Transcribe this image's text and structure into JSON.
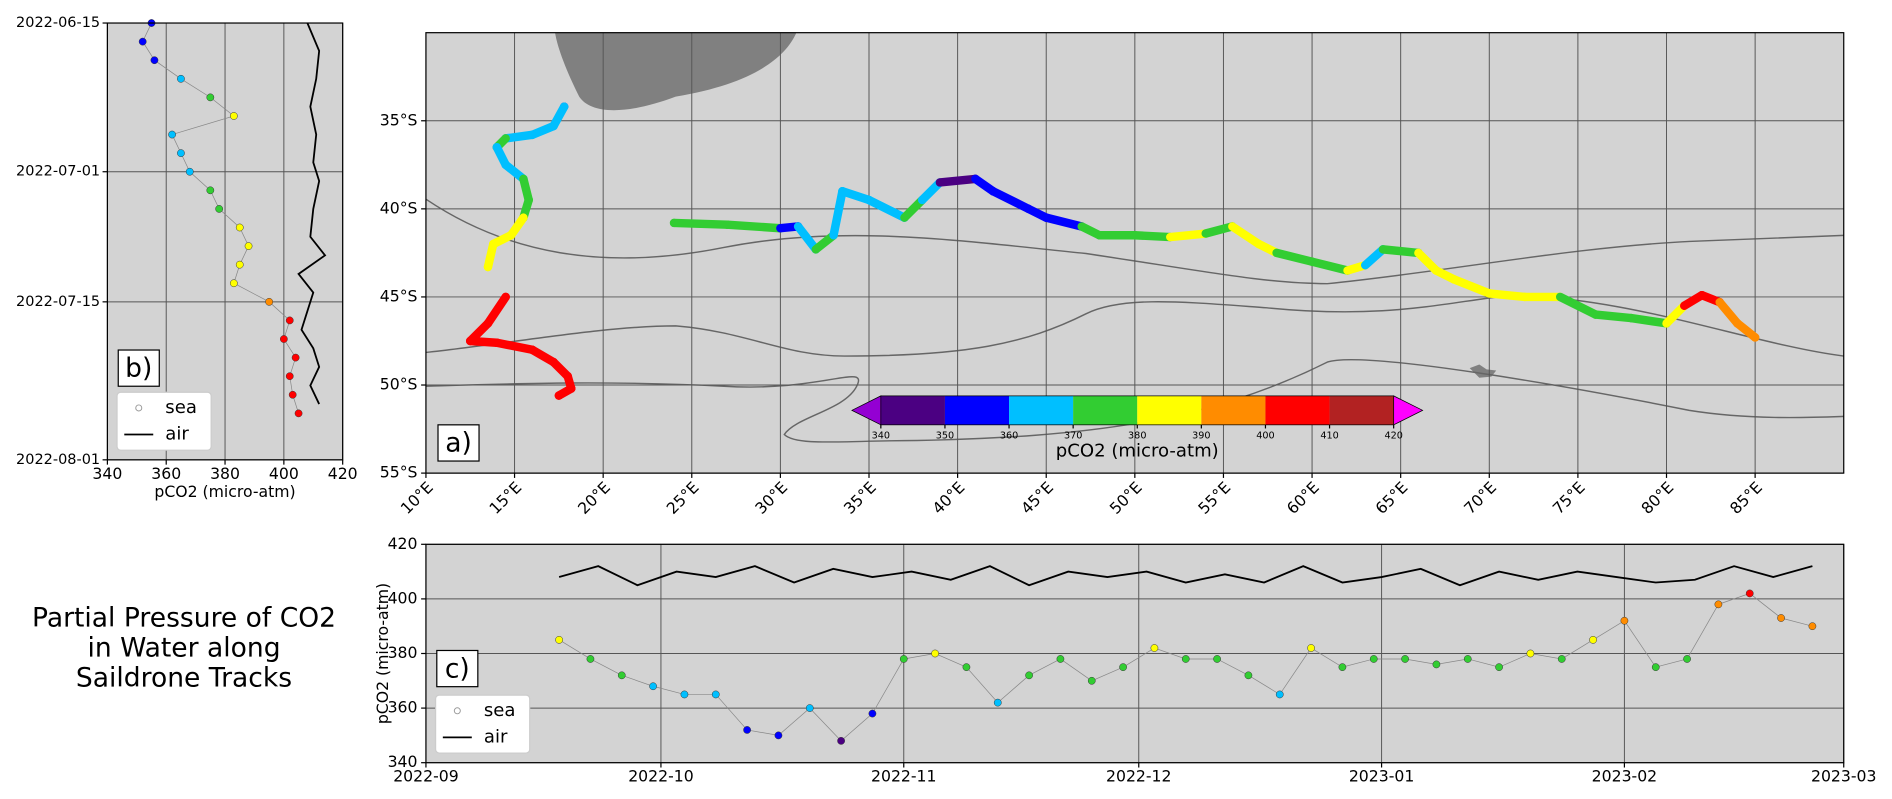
{
  "caption": "Partial Pressure of CO2 in Water along Saildrone Tracks",
  "chart_data": [
    {
      "type": "map",
      "label": "a)",
      "grid": true,
      "xlim": [
        10,
        90
      ],
      "ylim": [
        -55,
        -30
      ],
      "xticks": [
        {
          "value": 10,
          "label": "10°E"
        },
        {
          "value": 15,
          "label": "15°E"
        },
        {
          "value": 20,
          "label": "20°E"
        },
        {
          "value": 25,
          "label": "25°E"
        },
        {
          "value": 30,
          "label": "30°E"
        },
        {
          "value": 35,
          "label": "35°E"
        },
        {
          "value": 40,
          "label": "40°E"
        },
        {
          "value": 45,
          "label": "45°E"
        },
        {
          "value": 50,
          "label": "50°E"
        },
        {
          "value": 55,
          "label": "55°E"
        },
        {
          "value": 60,
          "label": "60°E"
        },
        {
          "value": 65,
          "label": "65°E"
        },
        {
          "value": 70,
          "label": "70°E"
        },
        {
          "value": 75,
          "label": "75°E"
        },
        {
          "value": 80,
          "label": "80°E"
        },
        {
          "value": 85,
          "label": "85°E"
        }
      ],
      "yticks": [
        {
          "value": -55,
          "label": "55°S"
        },
        {
          "value": -50,
          "label": "50°S"
        },
        {
          "value": -45,
          "label": "45°S"
        },
        {
          "value": -40,
          "label": "40°S"
        },
        {
          "value": -35,
          "label": "35°S"
        }
      ],
      "colorbar": {
        "label": "pCO2 (micro-atm)",
        "bounds": [
          340,
          350,
          360,
          370,
          380,
          390,
          400,
          410,
          420
        ],
        "colors": [
          "#4b0082",
          "#0000ff",
          "#00bfff",
          "#32cd32",
          "#ffff00",
          "#ff8c00",
          "#ff0000",
          "#b22222"
        ],
        "under": "#9400d3",
        "over": "#ff00ff"
      },
      "tracks": [
        {
          "lon": [
            17.8,
            17.2,
            16,
            14.5,
            14,
            14.5,
            15.5,
            15.8,
            15.5,
            14.8,
            13.8,
            13.5
          ],
          "lat": [
            -34.2,
            -35.3,
            -35.8,
            -36,
            -36.5,
            -37.5,
            -38.3,
            -39.5,
            -40.5,
            -41.5,
            -42,
            -43.3
          ],
          "pco2": [
            350,
            360,
            365,
            365,
            370,
            360,
            360,
            370,
            375,
            385,
            385,
            385
          ]
        },
        {
          "lon": [
            14.5,
            13.5,
            12.5,
            14,
            16,
            17.2,
            18,
            18.2,
            17.5
          ],
          "lat": [
            -45,
            -46.5,
            -47.5,
            -47.6,
            -48,
            -48.7,
            -49.5,
            -50.2,
            -50.6
          ],
          "pco2": [
            405,
            405,
            405,
            405,
            405,
            405,
            405,
            405,
            405
          ]
        },
        {
          "lon": [
            24,
            27,
            30,
            31,
            32,
            33,
            33.5,
            35,
            37,
            38,
            39,
            41,
            42,
            44,
            45,
            47,
            48,
            50,
            52,
            54,
            55.5,
            57,
            58,
            60,
            62,
            63,
            64,
            66,
            67,
            68,
            70,
            72,
            74,
            76,
            78,
            80,
            81,
            82,
            83,
            84,
            85
          ],
          "lat": [
            -40.8,
            -40.9,
            -41.1,
            -41,
            -42.3,
            -41.5,
            -39,
            -39.5,
            -40.5,
            -39.5,
            -38.5,
            -38.3,
            -39,
            -40,
            -40.5,
            -41,
            -41.5,
            -41.5,
            -41.6,
            -41.4,
            -41,
            -42,
            -42.5,
            -43,
            -43.5,
            -43.2,
            -42.3,
            -42.5,
            -43.5,
            -44,
            -44.8,
            -45,
            -45,
            -46,
            -46.2,
            -46.5,
            -45.5,
            -44.9,
            -45.3,
            -46.5,
            -47.3
          ],
          "pco2": [
            375,
            372,
            370,
            355,
            365,
            372,
            365,
            365,
            365,
            370,
            360,
            345,
            350,
            355,
            350,
            355,
            375,
            372,
            372,
            382,
            375,
            380,
            385,
            375,
            375,
            385,
            360,
            378,
            380,
            385,
            385,
            388,
            385,
            375,
            375,
            375,
            385,
            405,
            405,
            395,
            390
          ]
        }
      ]
    },
    {
      "type": "scatter",
      "label": "b)",
      "xlabel": "pCO2 (micro-atm)",
      "grid": true,
      "legend": "lower left",
      "xlim": [
        340,
        420
      ],
      "xticks": [
        340,
        360,
        380,
        400,
        420
      ],
      "ylim": [
        "2022-06-15",
        "2022-08-01"
      ],
      "yticks": [
        "2022-06-15",
        "2022-07-01",
        "2022-07-15",
        "2022-08-01"
      ],
      "series": [
        {
          "name": "sea",
          "y": [
            "2022-06-15",
            "2022-06-17",
            "2022-06-19",
            "2022-06-21",
            "2022-06-23",
            "2022-06-25",
            "2022-06-27",
            "2022-06-29",
            "2022-07-01",
            "2022-07-03",
            "2022-07-05",
            "2022-07-07",
            "2022-07-09",
            "2022-07-11",
            "2022-07-13",
            "2022-07-15",
            "2022-07-17",
            "2022-07-19",
            "2022-07-21",
            "2022-07-23",
            "2022-07-25",
            "2022-07-27"
          ],
          "values": [
            355,
            352,
            356,
            365,
            375,
            383,
            362,
            365,
            368,
            375,
            378,
            385,
            388,
            385,
            383,
            395,
            402,
            400,
            404,
            402,
            403,
            405
          ]
        },
        {
          "name": "air",
          "color": "#000000",
          "y": [
            "2022-06-15",
            "2022-06-18",
            "2022-06-21",
            "2022-06-24",
            "2022-06-27",
            "2022-06-30",
            "2022-07-02",
            "2022-07-05",
            "2022-07-08",
            "2022-07-10",
            "2022-07-12",
            "2022-07-14",
            "2022-07-16",
            "2022-07-18",
            "2022-07-20",
            "2022-07-22",
            "2022-07-24",
            "2022-07-26"
          ],
          "values": [
            408,
            412,
            411,
            409,
            411,
            410,
            412,
            410,
            409,
            414,
            405,
            410,
            408,
            406,
            410,
            412,
            409,
            412
          ]
        }
      ]
    },
    {
      "type": "line",
      "label": "c)",
      "ylabel": "pCO2 (micro-atm)",
      "grid": true,
      "legend": "lower left",
      "xlim": [
        "2022-09",
        "2023-03"
      ],
      "xticks": [
        "2022-09",
        "2022-10",
        "2022-11",
        "2022-12",
        "2023-01",
        "2023-02",
        "2023-03"
      ],
      "ylim": [
        340,
        420
      ],
      "yticks": [
        340,
        360,
        380,
        400,
        420
      ],
      "series": [
        {
          "name": "sea",
          "x": [
            "2022-09-18",
            "2022-09-22",
            "2022-09-26",
            "2022-09-30",
            "2022-10-04",
            "2022-10-08",
            "2022-10-12",
            "2022-10-16",
            "2022-10-20",
            "2022-10-24",
            "2022-10-28",
            "2022-11-01",
            "2022-11-05",
            "2022-11-09",
            "2022-11-13",
            "2022-11-17",
            "2022-11-21",
            "2022-11-25",
            "2022-11-29",
            "2022-12-03",
            "2022-12-07",
            "2022-12-11",
            "2022-12-15",
            "2022-12-19",
            "2022-12-23",
            "2022-12-27",
            "2022-12-31",
            "2023-01-04",
            "2023-01-08",
            "2023-01-12",
            "2023-01-16",
            "2023-01-20",
            "2023-01-24",
            "2023-01-28",
            "2023-02-01",
            "2023-02-05",
            "2023-02-09",
            "2023-02-13",
            "2023-02-17",
            "2023-02-21",
            "2023-02-25"
          ],
          "values": [
            385,
            378,
            372,
            368,
            365,
            365,
            352,
            350,
            360,
            348,
            358,
            378,
            380,
            375,
            362,
            372,
            378,
            370,
            375,
            382,
            378,
            378,
            372,
            365,
            382,
            375,
            378,
            378,
            376,
            378,
            375,
            380,
            378,
            385,
            392,
            375,
            378,
            398,
            402,
            393,
            390
          ]
        },
        {
          "name": "air",
          "color": "#000000",
          "x": [
            "2022-09-18",
            "2022-09-23",
            "2022-09-28",
            "2022-10-03",
            "2022-10-08",
            "2022-10-13",
            "2022-10-18",
            "2022-10-23",
            "2022-10-28",
            "2022-11-02",
            "2022-11-07",
            "2022-11-12",
            "2022-11-17",
            "2022-11-22",
            "2022-11-27",
            "2022-12-02",
            "2022-12-07",
            "2022-12-12",
            "2022-12-17",
            "2022-12-22",
            "2022-12-27",
            "2023-01-01",
            "2023-01-06",
            "2023-01-11",
            "2023-01-16",
            "2023-01-21",
            "2023-01-26",
            "2023-01-31",
            "2023-02-05",
            "2023-02-10",
            "2023-02-15",
            "2023-02-20",
            "2023-02-25"
          ],
          "values": [
            408,
            412,
            405,
            410,
            408,
            412,
            406,
            411,
            408,
            410,
            407,
            412,
            405,
            410,
            408,
            410,
            406,
            409,
            406,
            412,
            406,
            408,
            411,
            405,
            410,
            407,
            410,
            408,
            406,
            407,
            412,
            408,
            412
          ]
        }
      ]
    }
  ]
}
